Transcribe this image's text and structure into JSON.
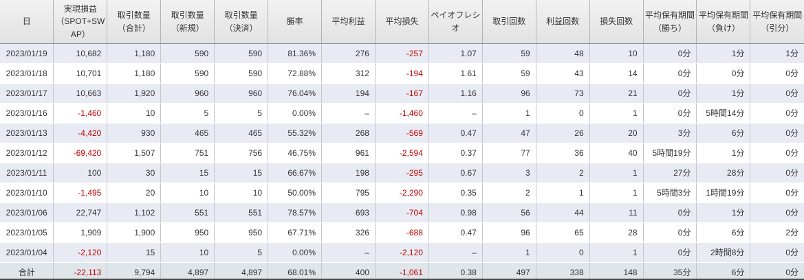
{
  "app": {
    "view_name": "daily-trading-report"
  },
  "colors": {
    "negative_value": "#c00000",
    "row_alternate": "#e9ebf4",
    "total_row_bg": "#dfe6ea",
    "header_bg": "#e6e6e6",
    "grid_line": "#c6c6c6",
    "bottom_border": "#4a4a4a",
    "text": "#333333"
  },
  "table": {
    "columns": [
      {
        "label": "日"
      },
      {
        "label": "実現損益\n（SPOT+SWAP）"
      },
      {
        "label": "取引数量\n（合計）"
      },
      {
        "label": "取引数量\n（新規）"
      },
      {
        "label": "取引数量\n（決済）"
      },
      {
        "label": "勝率"
      },
      {
        "label": "平均利益"
      },
      {
        "label": "平均損失"
      },
      {
        "label": "ペイオフレシオ"
      },
      {
        "label": "取引回数"
      },
      {
        "label": "利益回数"
      },
      {
        "label": "損失回数"
      },
      {
        "label": "平均保有期間\n（勝ち）"
      },
      {
        "label": "平均保有期間\n（負け）"
      },
      {
        "label": "平均保有期間\n（引分）"
      }
    ],
    "rows": [
      {
        "cells": [
          "2023/01/19",
          "10,682",
          "1,180",
          "590",
          "590",
          "81.36%",
          "276",
          "-257",
          "1.07",
          "59",
          "48",
          "10",
          "0分",
          "1分",
          "1分"
        ]
      },
      {
        "cells": [
          "2023/01/18",
          "10,701",
          "1,180",
          "590",
          "590",
          "72.88%",
          "312",
          "-194",
          "1.61",
          "59",
          "43",
          "14",
          "0分",
          "0分",
          "0分"
        ]
      },
      {
        "cells": [
          "2023/01/17",
          "10,663",
          "1,920",
          "960",
          "960",
          "76.04%",
          "194",
          "-167",
          "1.16",
          "96",
          "73",
          "21",
          "0分",
          "1分",
          "0分"
        ]
      },
      {
        "cells": [
          "2023/01/16",
          "-1,460",
          "10",
          "5",
          "5",
          "0.00%",
          "–",
          "-1,460",
          "–",
          "1",
          "0",
          "1",
          "0分",
          "5時間14分",
          "0分"
        ]
      },
      {
        "cells": [
          "2023/01/13",
          "-4,420",
          "930",
          "465",
          "465",
          "55.32%",
          "268",
          "-569",
          "0.47",
          "47",
          "26",
          "20",
          "3分",
          "6分",
          "0分"
        ]
      },
      {
        "cells": [
          "2023/01/12",
          "-69,420",
          "1,507",
          "751",
          "756",
          "46.75%",
          "961",
          "-2,594",
          "0.37",
          "77",
          "36",
          "40",
          "5時間19分",
          "1分",
          "0分"
        ]
      },
      {
        "cells": [
          "2023/01/11",
          "100",
          "30",
          "15",
          "15",
          "66.67%",
          "198",
          "-295",
          "0.67",
          "3",
          "2",
          "1",
          "27分",
          "28分",
          "0分"
        ]
      },
      {
        "cells": [
          "2023/01/10",
          "-1,495",
          "20",
          "10",
          "10",
          "50.00%",
          "795",
          "-2,290",
          "0.35",
          "2",
          "1",
          "1",
          "5時間3分",
          "1時間19分",
          "0分"
        ]
      },
      {
        "cells": [
          "2023/01/06",
          "22,747",
          "1,102",
          "551",
          "551",
          "78.57%",
          "693",
          "-704",
          "0.98",
          "56",
          "44",
          "11",
          "0分",
          "1分",
          "0分"
        ]
      },
      {
        "cells": [
          "2023/01/05",
          "1,909",
          "1,900",
          "950",
          "950",
          "67.71%",
          "326",
          "-688",
          "0.47",
          "96",
          "65",
          "28",
          "0分",
          "6分",
          "2分"
        ]
      },
      {
        "cells": [
          "2023/01/04",
          "-2,120",
          "15",
          "10",
          "5",
          "0.00%",
          "–",
          "-2,120",
          "–",
          "1",
          "0",
          "1",
          "0分",
          "2時間8分",
          "0分"
        ]
      }
    ],
    "total_row": {
      "cells": [
        "合計",
        "-22,113",
        "9,794",
        "4,897",
        "4,897",
        "68.01%",
        "400",
        "-1,061",
        "0.38",
        "497",
        "338",
        "148",
        "35分",
        "6分",
        "0分"
      ]
    }
  }
}
